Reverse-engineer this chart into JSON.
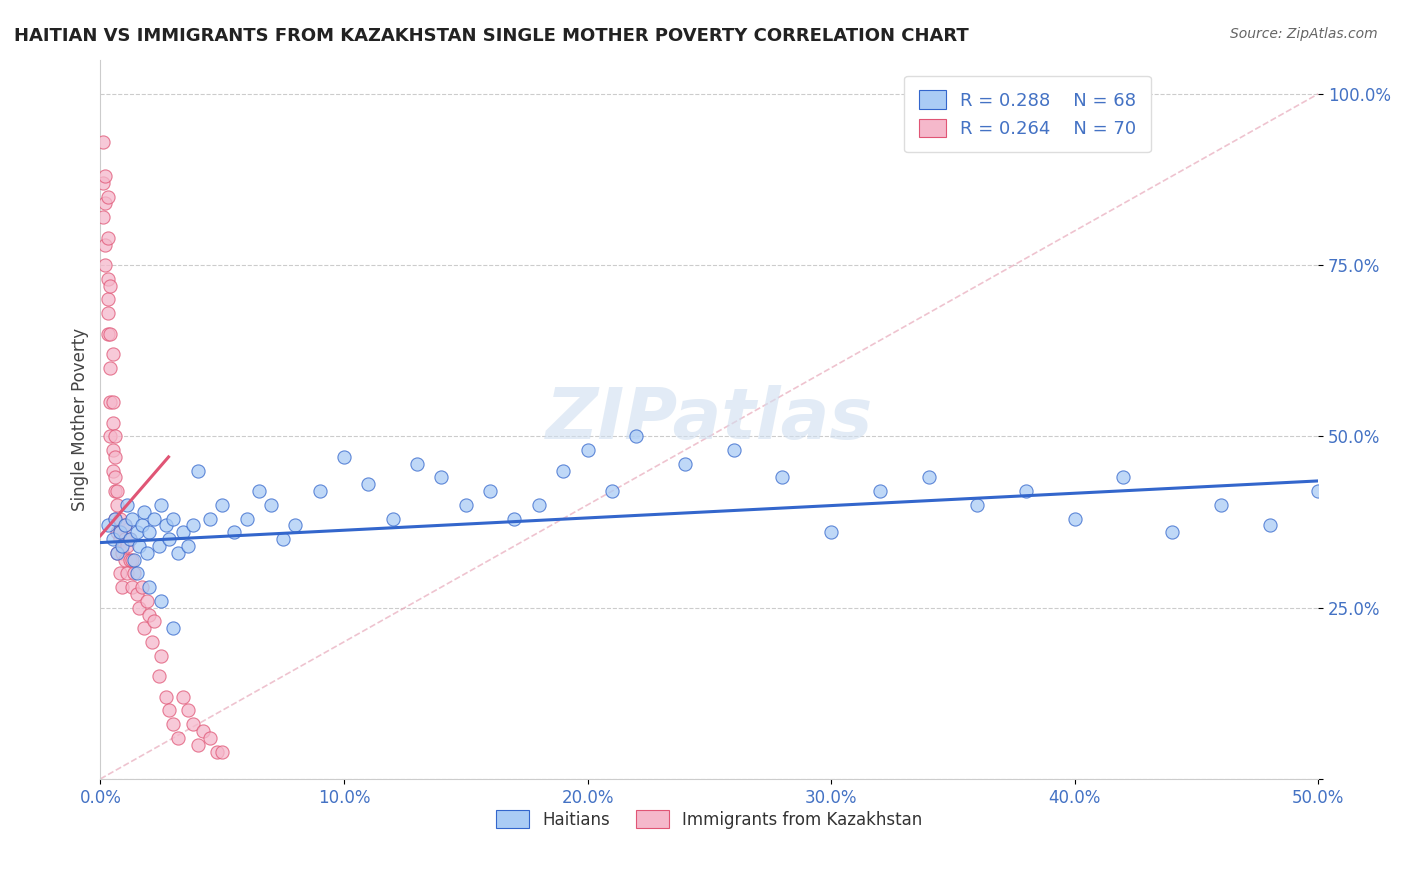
{
  "title": "HAITIAN VS IMMIGRANTS FROM KAZAKHSTAN SINGLE MOTHER POVERTY CORRELATION CHART",
  "source": "Source: ZipAtlas.com",
  "ylabel": "Single Mother Poverty",
  "legend_label_1": "Haitians",
  "legend_label_2": "Immigrants from Kazakhstan",
  "legend_R1": "R = 0.288",
  "legend_N1": "N = 68",
  "legend_R2": "R = 0.264",
  "legend_N2": "N = 70",
  "color_haiti": "#aaccf5",
  "color_kazakhstan": "#f5b8cb",
  "color_trend_haiti": "#3366cc",
  "color_trend_kazakhstan": "#e05575",
  "color_ref_line": "#e8aabb",
  "color_title": "#222222",
  "color_source": "#666666",
  "color_axis_label": "#444444",
  "color_tick_label": "#4472c4",
  "color_watermark": "#d0dff0",
  "xlim": [
    0.0,
    0.5
  ],
  "ylim": [
    0.0,
    1.05
  ],
  "haiti_x": [
    0.003,
    0.005,
    0.006,
    0.007,
    0.008,
    0.009,
    0.01,
    0.011,
    0.012,
    0.013,
    0.014,
    0.015,
    0.016,
    0.017,
    0.018,
    0.019,
    0.02,
    0.022,
    0.024,
    0.025,
    0.027,
    0.028,
    0.03,
    0.032,
    0.034,
    0.036,
    0.038,
    0.04,
    0.045,
    0.05,
    0.055,
    0.06,
    0.065,
    0.07,
    0.075,
    0.08,
    0.09,
    0.1,
    0.11,
    0.12,
    0.13,
    0.14,
    0.15,
    0.16,
    0.17,
    0.18,
    0.19,
    0.2,
    0.21,
    0.22,
    0.24,
    0.26,
    0.28,
    0.3,
    0.32,
    0.34,
    0.36,
    0.38,
    0.4,
    0.42,
    0.44,
    0.46,
    0.48,
    0.5,
    0.015,
    0.02,
    0.025,
    0.03
  ],
  "haiti_y": [
    0.37,
    0.35,
    0.38,
    0.33,
    0.36,
    0.34,
    0.37,
    0.4,
    0.35,
    0.38,
    0.32,
    0.36,
    0.34,
    0.37,
    0.39,
    0.33,
    0.36,
    0.38,
    0.34,
    0.4,
    0.37,
    0.35,
    0.38,
    0.33,
    0.36,
    0.34,
    0.37,
    0.45,
    0.38,
    0.4,
    0.36,
    0.38,
    0.42,
    0.4,
    0.35,
    0.37,
    0.42,
    0.47,
    0.43,
    0.38,
    0.46,
    0.44,
    0.4,
    0.42,
    0.38,
    0.4,
    0.45,
    0.48,
    0.42,
    0.5,
    0.46,
    0.48,
    0.44,
    0.36,
    0.42,
    0.44,
    0.4,
    0.42,
    0.38,
    0.44,
    0.36,
    0.4,
    0.37,
    0.42,
    0.3,
    0.28,
    0.26,
    0.22
  ],
  "kazakh_x": [
    0.001,
    0.001,
    0.001,
    0.002,
    0.002,
    0.002,
    0.002,
    0.003,
    0.003,
    0.003,
    0.003,
    0.003,
    0.003,
    0.004,
    0.004,
    0.004,
    0.004,
    0.004,
    0.005,
    0.005,
    0.005,
    0.005,
    0.005,
    0.006,
    0.006,
    0.006,
    0.006,
    0.006,
    0.007,
    0.007,
    0.007,
    0.007,
    0.008,
    0.008,
    0.008,
    0.008,
    0.009,
    0.009,
    0.01,
    0.01,
    0.01,
    0.011,
    0.011,
    0.012,
    0.012,
    0.013,
    0.013,
    0.014,
    0.015,
    0.016,
    0.017,
    0.018,
    0.019,
    0.02,
    0.021,
    0.022,
    0.024,
    0.025,
    0.027,
    0.028,
    0.03,
    0.032,
    0.034,
    0.036,
    0.038,
    0.04,
    0.042,
    0.045,
    0.048,
    0.05
  ],
  "kazakh_y": [
    0.93,
    0.87,
    0.82,
    0.88,
    0.78,
    0.84,
    0.75,
    0.79,
    0.85,
    0.7,
    0.65,
    0.73,
    0.68,
    0.72,
    0.6,
    0.65,
    0.55,
    0.5,
    0.62,
    0.55,
    0.48,
    0.52,
    0.45,
    0.5,
    0.42,
    0.47,
    0.38,
    0.44,
    0.4,
    0.36,
    0.42,
    0.33,
    0.38,
    0.35,
    0.3,
    0.36,
    0.33,
    0.28,
    0.35,
    0.32,
    0.37,
    0.3,
    0.34,
    0.32,
    0.35,
    0.28,
    0.32,
    0.3,
    0.27,
    0.25,
    0.28,
    0.22,
    0.26,
    0.24,
    0.2,
    0.23,
    0.15,
    0.18,
    0.12,
    0.1,
    0.08,
    0.06,
    0.12,
    0.1,
    0.08,
    0.05,
    0.07,
    0.06,
    0.04,
    0.04
  ]
}
